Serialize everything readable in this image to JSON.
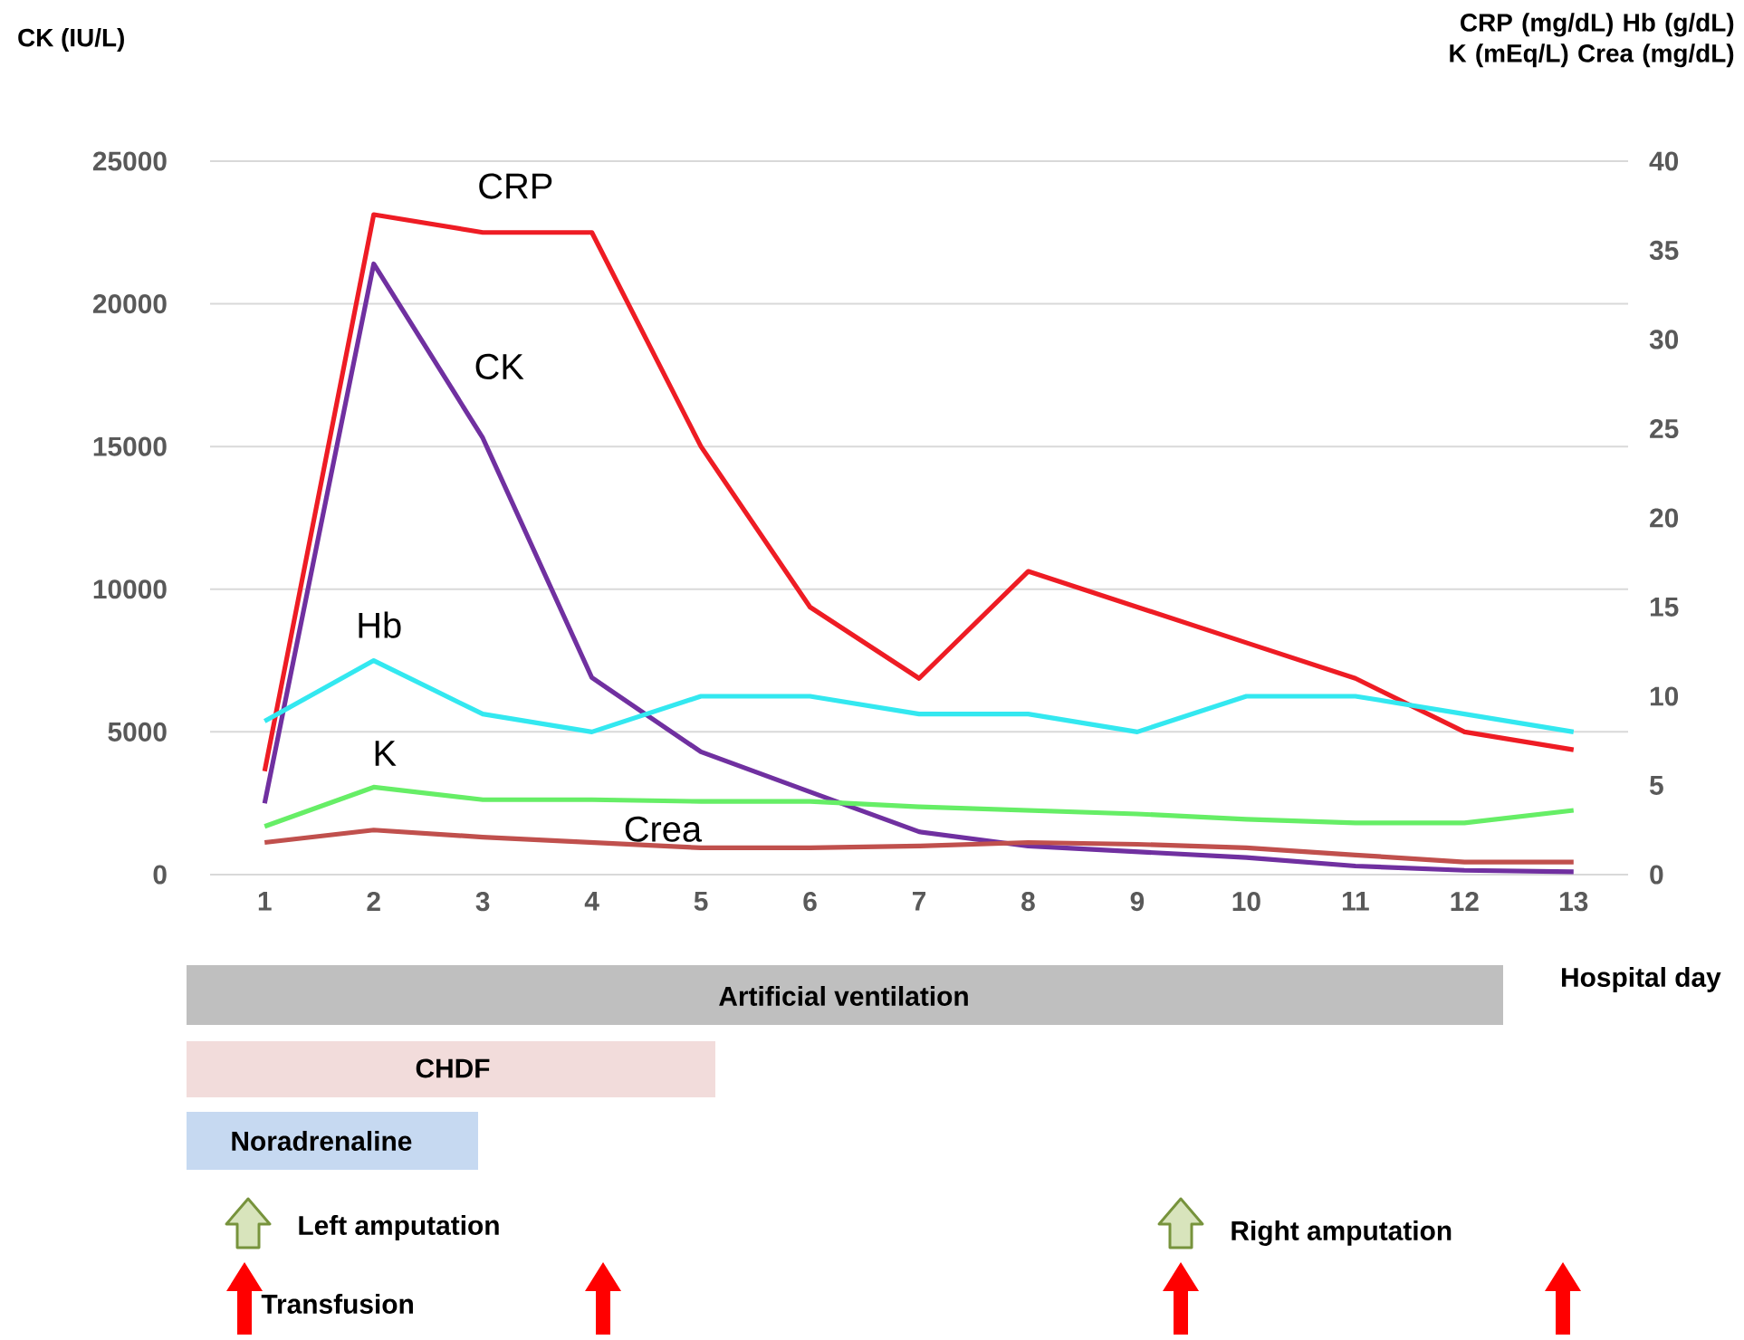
{
  "chart_data": {
    "type": "line",
    "ylabel": "CK (IU/L)",
    "y2label": "CRP (mg/dL) Hb (g/dL) K (mEq/L) Crea (mg/dL)",
    "xlabel": "Hospital day",
    "categories": [
      "1",
      "2",
      "3",
      "4",
      "5",
      "6",
      "7",
      "8",
      "9",
      "10",
      "11",
      "12",
      "13"
    ],
    "series": [
      {
        "name": "CRP",
        "color": "#ee1c24",
        "axis": "y2",
        "values": [
          5.8,
          37.0,
          36.0,
          36.0,
          24.0,
          15.0,
          11.0,
          17.0,
          15.0,
          13.0,
          11.0,
          8.0,
          7.0
        ]
      },
      {
        "name": "CK",
        "color": "#7030a0",
        "values": [
          2500,
          21400,
          15300,
          6900,
          4300,
          2900,
          1500,
          1000,
          800,
          600,
          300,
          150,
          100
        ]
      },
      {
        "name": "Hb",
        "color": "#33e8f0",
        "axis": "y2",
        "values": [
          8.6,
          12.0,
          9.0,
          8.0,
          10.0,
          10.0,
          9.0,
          9.0,
          8.0,
          10.0,
          10.0,
          9.0,
          8.0
        ]
      },
      {
        "name": "K",
        "color": "#66ee66",
        "axis": "y2",
        "values": [
          2.7,
          4.9,
          4.2,
          4.2,
          4.1,
          4.1,
          3.8,
          3.6,
          3.4,
          3.1,
          2.9,
          2.9,
          3.6
        ]
      },
      {
        "name": "Crea",
        "color": "#c0504d",
        "axis": "y2",
        "values": [
          1.8,
          2.5,
          2.1,
          1.8,
          1.5,
          1.5,
          1.6,
          1.8,
          1.7,
          1.5,
          1.1,
          0.7,
          0.7
        ]
      }
    ],
    "ylim": [
      0,
      25000
    ],
    "yticks": [
      0,
      5000,
      10000,
      15000,
      20000,
      25000
    ],
    "y2lim": [
      0,
      40
    ],
    "y2ticks": [
      0,
      5,
      10,
      15,
      20,
      25,
      30,
      35,
      40
    ],
    "grid": "y",
    "legend": false,
    "marker": "none",
    "line_style": "solid",
    "annotations": [
      "Artificial ventilation",
      "CHDF",
      "Noradrenaline",
      "Left amputation",
      "Right amputation",
      "Transfusion"
    ]
  }
}
